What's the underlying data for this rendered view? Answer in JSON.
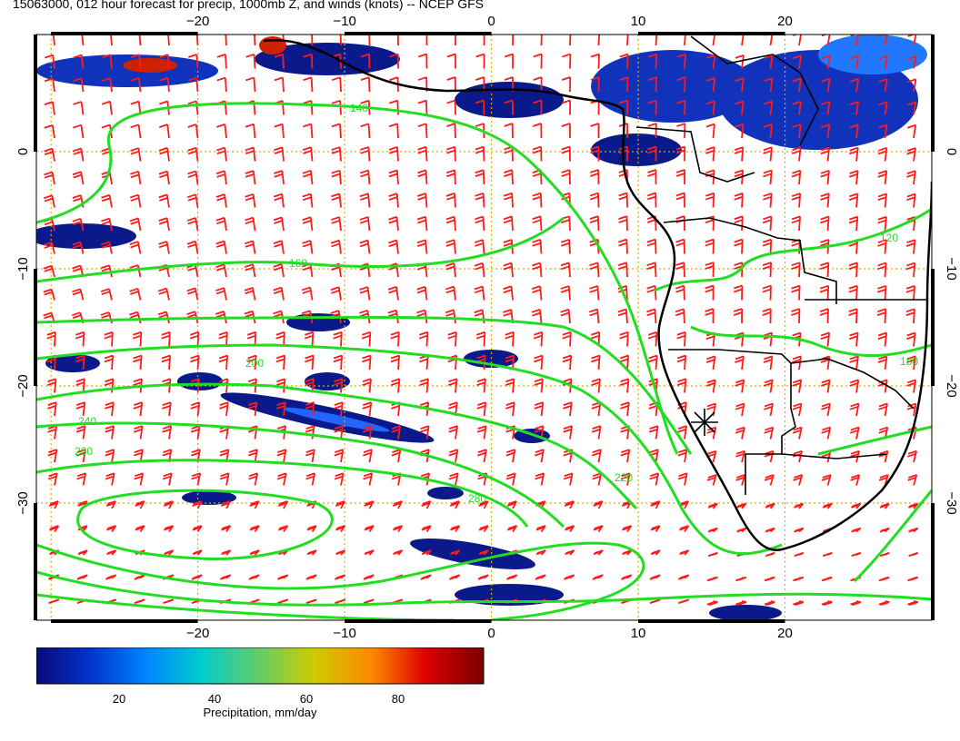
{
  "title": "15063000, 012 hour forecast for precip, 1000mb Z, and winds (knots) -- NCEP GFS",
  "map": {
    "lon_range": [
      -31,
      30
    ],
    "lat_range": [
      -40,
      10
    ],
    "lon_ticks": [
      -20,
      -10,
      0,
      10,
      20
    ],
    "lat_ticks": [
      0,
      -10,
      -20,
      -30
    ],
    "lon_tick_labels": [
      "−20",
      "−10",
      "0",
      "10",
      "20"
    ],
    "lat_tick_labels": [
      "0",
      "−10",
      "−20",
      "−30"
    ],
    "grid_color": "#d4b000",
    "contour_color": "#22dd22",
    "barb_color": "#ff1a1a",
    "coast_color": "#000000",
    "contour_labels": [
      "140",
      "160",
      "180",
      "200",
      "220",
      "240",
      "260",
      "280",
      "120"
    ],
    "marker": "star-marker"
  },
  "colorbar": {
    "ticks": [
      "20",
      "40",
      "60",
      "80"
    ],
    "title": "Precipitation, mm/day",
    "colors": [
      "#0a0a7a",
      "#0033cc",
      "#0088ff",
      "#00cccc",
      "#66cc66",
      "#cccc00",
      "#ff8800",
      "#dd0000",
      "#7a0000"
    ]
  }
}
